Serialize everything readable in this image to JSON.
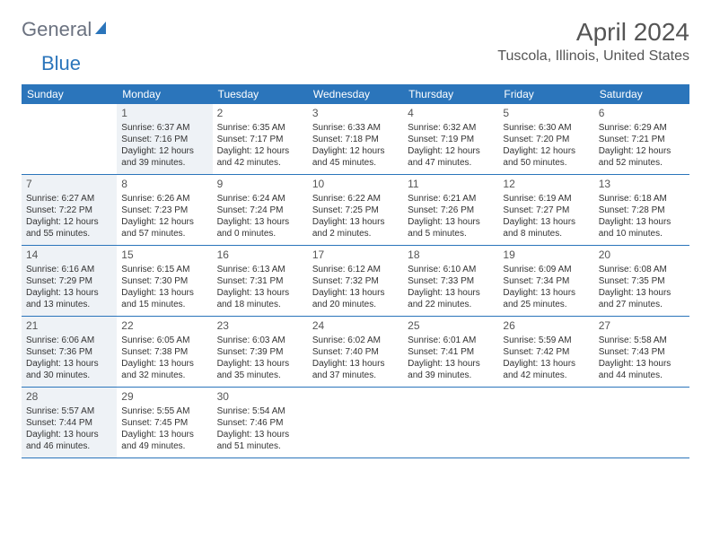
{
  "logo": {
    "text1": "General",
    "text2": "Blue"
  },
  "title": "April 2024",
  "subtitle": "Tuscola, Illinois, United States",
  "colors": {
    "header_bg": "#2b75bb",
    "header_text": "#ffffff",
    "shaded_bg": "#eef2f6",
    "text": "#333333",
    "title_text": "#555555"
  },
  "layout": {
    "columns": 7,
    "type": "calendar",
    "cell_fontsize": 10,
    "daynum_fontsize": 12,
    "header_fontsize": 12,
    "title_fontsize": 28,
    "subtitle_fontsize": 16
  },
  "day_names": [
    "Sunday",
    "Monday",
    "Tuesday",
    "Wednesday",
    "Thursday",
    "Friday",
    "Saturday"
  ],
  "weeks": [
    [
      {
        "day": "",
        "shaded": false
      },
      {
        "day": "1",
        "shaded": true,
        "sunrise": "Sunrise: 6:37 AM",
        "sunset": "Sunset: 7:16 PM",
        "daylight1": "Daylight: 12 hours",
        "daylight2": "and 39 minutes."
      },
      {
        "day": "2",
        "shaded": false,
        "sunrise": "Sunrise: 6:35 AM",
        "sunset": "Sunset: 7:17 PM",
        "daylight1": "Daylight: 12 hours",
        "daylight2": "and 42 minutes."
      },
      {
        "day": "3",
        "shaded": false,
        "sunrise": "Sunrise: 6:33 AM",
        "sunset": "Sunset: 7:18 PM",
        "daylight1": "Daylight: 12 hours",
        "daylight2": "and 45 minutes."
      },
      {
        "day": "4",
        "shaded": false,
        "sunrise": "Sunrise: 6:32 AM",
        "sunset": "Sunset: 7:19 PM",
        "daylight1": "Daylight: 12 hours",
        "daylight2": "and 47 minutes."
      },
      {
        "day": "5",
        "shaded": false,
        "sunrise": "Sunrise: 6:30 AM",
        "sunset": "Sunset: 7:20 PM",
        "daylight1": "Daylight: 12 hours",
        "daylight2": "and 50 minutes."
      },
      {
        "day": "6",
        "shaded": false,
        "sunrise": "Sunrise: 6:29 AM",
        "sunset": "Sunset: 7:21 PM",
        "daylight1": "Daylight: 12 hours",
        "daylight2": "and 52 minutes."
      }
    ],
    [
      {
        "day": "7",
        "shaded": true,
        "sunrise": "Sunrise: 6:27 AM",
        "sunset": "Sunset: 7:22 PM",
        "daylight1": "Daylight: 12 hours",
        "daylight2": "and 55 minutes."
      },
      {
        "day": "8",
        "shaded": false,
        "sunrise": "Sunrise: 6:26 AM",
        "sunset": "Sunset: 7:23 PM",
        "daylight1": "Daylight: 12 hours",
        "daylight2": "and 57 minutes."
      },
      {
        "day": "9",
        "shaded": false,
        "sunrise": "Sunrise: 6:24 AM",
        "sunset": "Sunset: 7:24 PM",
        "daylight1": "Daylight: 13 hours",
        "daylight2": "and 0 minutes."
      },
      {
        "day": "10",
        "shaded": false,
        "sunrise": "Sunrise: 6:22 AM",
        "sunset": "Sunset: 7:25 PM",
        "daylight1": "Daylight: 13 hours",
        "daylight2": "and 2 minutes."
      },
      {
        "day": "11",
        "shaded": false,
        "sunrise": "Sunrise: 6:21 AM",
        "sunset": "Sunset: 7:26 PM",
        "daylight1": "Daylight: 13 hours",
        "daylight2": "and 5 minutes."
      },
      {
        "day": "12",
        "shaded": false,
        "sunrise": "Sunrise: 6:19 AM",
        "sunset": "Sunset: 7:27 PM",
        "daylight1": "Daylight: 13 hours",
        "daylight2": "and 8 minutes."
      },
      {
        "day": "13",
        "shaded": false,
        "sunrise": "Sunrise: 6:18 AM",
        "sunset": "Sunset: 7:28 PM",
        "daylight1": "Daylight: 13 hours",
        "daylight2": "and 10 minutes."
      }
    ],
    [
      {
        "day": "14",
        "shaded": true,
        "sunrise": "Sunrise: 6:16 AM",
        "sunset": "Sunset: 7:29 PM",
        "daylight1": "Daylight: 13 hours",
        "daylight2": "and 13 minutes."
      },
      {
        "day": "15",
        "shaded": false,
        "sunrise": "Sunrise: 6:15 AM",
        "sunset": "Sunset: 7:30 PM",
        "daylight1": "Daylight: 13 hours",
        "daylight2": "and 15 minutes."
      },
      {
        "day": "16",
        "shaded": false,
        "sunrise": "Sunrise: 6:13 AM",
        "sunset": "Sunset: 7:31 PM",
        "daylight1": "Daylight: 13 hours",
        "daylight2": "and 18 minutes."
      },
      {
        "day": "17",
        "shaded": false,
        "sunrise": "Sunrise: 6:12 AM",
        "sunset": "Sunset: 7:32 PM",
        "daylight1": "Daylight: 13 hours",
        "daylight2": "and 20 minutes."
      },
      {
        "day": "18",
        "shaded": false,
        "sunrise": "Sunrise: 6:10 AM",
        "sunset": "Sunset: 7:33 PM",
        "daylight1": "Daylight: 13 hours",
        "daylight2": "and 22 minutes."
      },
      {
        "day": "19",
        "shaded": false,
        "sunrise": "Sunrise: 6:09 AM",
        "sunset": "Sunset: 7:34 PM",
        "daylight1": "Daylight: 13 hours",
        "daylight2": "and 25 minutes."
      },
      {
        "day": "20",
        "shaded": false,
        "sunrise": "Sunrise: 6:08 AM",
        "sunset": "Sunset: 7:35 PM",
        "daylight1": "Daylight: 13 hours",
        "daylight2": "and 27 minutes."
      }
    ],
    [
      {
        "day": "21",
        "shaded": true,
        "sunrise": "Sunrise: 6:06 AM",
        "sunset": "Sunset: 7:36 PM",
        "daylight1": "Daylight: 13 hours",
        "daylight2": "and 30 minutes."
      },
      {
        "day": "22",
        "shaded": false,
        "sunrise": "Sunrise: 6:05 AM",
        "sunset": "Sunset: 7:38 PM",
        "daylight1": "Daylight: 13 hours",
        "daylight2": "and 32 minutes."
      },
      {
        "day": "23",
        "shaded": false,
        "sunrise": "Sunrise: 6:03 AM",
        "sunset": "Sunset: 7:39 PM",
        "daylight1": "Daylight: 13 hours",
        "daylight2": "and 35 minutes."
      },
      {
        "day": "24",
        "shaded": false,
        "sunrise": "Sunrise: 6:02 AM",
        "sunset": "Sunset: 7:40 PM",
        "daylight1": "Daylight: 13 hours",
        "daylight2": "and 37 minutes."
      },
      {
        "day": "25",
        "shaded": false,
        "sunrise": "Sunrise: 6:01 AM",
        "sunset": "Sunset: 7:41 PM",
        "daylight1": "Daylight: 13 hours",
        "daylight2": "and 39 minutes."
      },
      {
        "day": "26",
        "shaded": false,
        "sunrise": "Sunrise: 5:59 AM",
        "sunset": "Sunset: 7:42 PM",
        "daylight1": "Daylight: 13 hours",
        "daylight2": "and 42 minutes."
      },
      {
        "day": "27",
        "shaded": false,
        "sunrise": "Sunrise: 5:58 AM",
        "sunset": "Sunset: 7:43 PM",
        "daylight1": "Daylight: 13 hours",
        "daylight2": "and 44 minutes."
      }
    ],
    [
      {
        "day": "28",
        "shaded": true,
        "sunrise": "Sunrise: 5:57 AM",
        "sunset": "Sunset: 7:44 PM",
        "daylight1": "Daylight: 13 hours",
        "daylight2": "and 46 minutes."
      },
      {
        "day": "29",
        "shaded": false,
        "sunrise": "Sunrise: 5:55 AM",
        "sunset": "Sunset: 7:45 PM",
        "daylight1": "Daylight: 13 hours",
        "daylight2": "and 49 minutes."
      },
      {
        "day": "30",
        "shaded": false,
        "sunrise": "Sunrise: 5:54 AM",
        "sunset": "Sunset: 7:46 PM",
        "daylight1": "Daylight: 13 hours",
        "daylight2": "and 51 minutes."
      },
      {
        "day": "",
        "shaded": false
      },
      {
        "day": "",
        "shaded": false
      },
      {
        "day": "",
        "shaded": false
      },
      {
        "day": "",
        "shaded": false
      }
    ]
  ]
}
